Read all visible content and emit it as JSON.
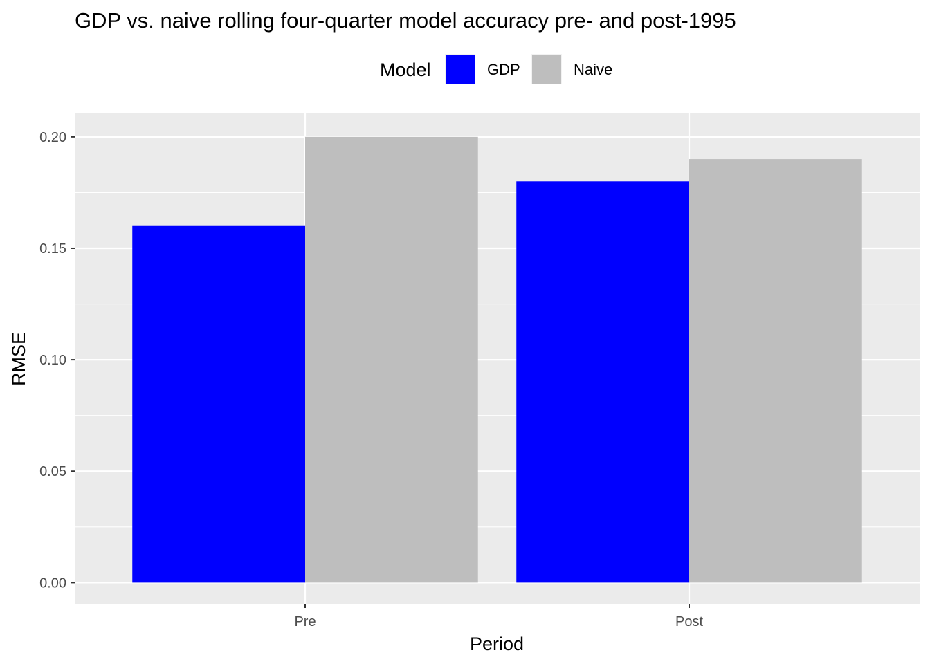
{
  "chart_data": {
    "type": "bar",
    "title": "GDP vs. naive rolling four-quarter model accuracy pre- and post-1995",
    "xlabel": "Period",
    "ylabel": "RMSE",
    "categories": [
      "Pre",
      "Post"
    ],
    "series": [
      {
        "name": "GDP",
        "values": [
          0.16,
          0.18
        ],
        "color": "#0000FF"
      },
      {
        "name": "Naive",
        "values": [
          0.2,
          0.19
        ],
        "color": "#BEBEBE"
      }
    ],
    "ylim": [
      -0.0095,
      0.2105
    ],
    "y_ticks": [
      0.0,
      0.05,
      0.1,
      0.15,
      0.2
    ],
    "y_tick_labels": [
      "0.00",
      "0.05",
      "0.10",
      "0.15",
      "0.20"
    ],
    "legend": {
      "title": "Model",
      "position": "top"
    },
    "grid": true,
    "panel_background": "#EBEBEB",
    "grid_color": "#FFFFFF"
  }
}
